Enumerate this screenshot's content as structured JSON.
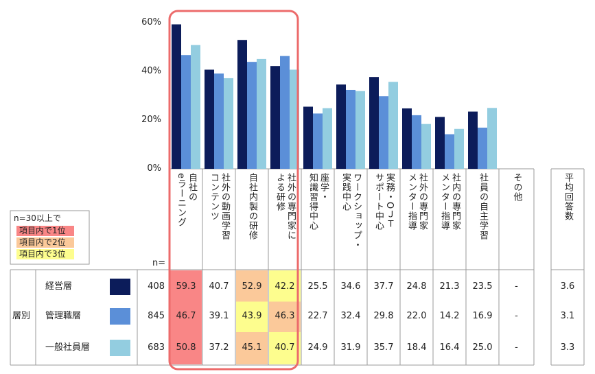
{
  "chart_data": {
    "type": "bar",
    "categories": [
      "自社の\neラーニング",
      "社外の動画学習\nコンテンツ",
      "自社内製の研修",
      "社外の専門家に\nよる研修",
      "座学・\n知識習得中心",
      "ワークショップ・\n実践中心",
      "実務・ОＪＴ\nサポート中心",
      "社外の専門家\nメンター指導",
      "社内の専門家\nメンター指導",
      "社員の自主学習",
      "その他"
    ],
    "average_label": "平均回答数",
    "ylim": [
      0,
      60
    ],
    "yticks": [
      {
        "value": 0,
        "label": "0%"
      },
      {
        "value": 20,
        "label": "20%"
      },
      {
        "value": 40,
        "label": "40%"
      },
      {
        "value": 60,
        "label": "60%"
      }
    ],
    "group_label": "層別",
    "n_label": "n=",
    "legend": {
      "title": "n=30以上で",
      "items": [
        {
          "name": "項目内で1位",
          "color": "#f98686"
        },
        {
          "name": "項目内で2位",
          "color": "#fbc99a"
        },
        {
          "name": "項目内で3位",
          "color": "#fdfd8e"
        }
      ]
    },
    "series": [
      {
        "name": "経営層",
        "color": "#0c1c5a",
        "n": 408,
        "values": [
          59.3,
          40.7,
          52.9,
          42.2,
          25.5,
          34.6,
          37.7,
          24.8,
          21.3,
          23.5,
          null
        ],
        "value_labels": [
          "59.3",
          "40.7",
          "52.9",
          "42.2",
          "25.5",
          "34.6",
          "37.7",
          "24.8",
          "21.3",
          "23.5",
          "-"
        ],
        "highlight": [
          0,
          null,
          1,
          2,
          null,
          null,
          null,
          null,
          null,
          null,
          null
        ],
        "average": 3.6
      },
      {
        "name": "管理職層",
        "color": "#5b8fd8",
        "n": 845,
        "values": [
          46.7,
          39.1,
          43.9,
          46.3,
          22.7,
          32.4,
          29.8,
          22.0,
          14.2,
          16.9,
          null
        ],
        "value_labels": [
          "46.7",
          "39.1",
          "43.9",
          "46.3",
          "22.7",
          "32.4",
          "29.8",
          "22.0",
          "14.2",
          "16.9",
          "-"
        ],
        "highlight": [
          0,
          null,
          2,
          1,
          null,
          null,
          null,
          null,
          null,
          null,
          null
        ],
        "average": 3.1
      },
      {
        "name": "一般社員層",
        "color": "#93cde0",
        "n": 683,
        "values": [
          50.8,
          37.2,
          45.1,
          40.7,
          24.9,
          31.9,
          35.7,
          18.4,
          16.4,
          25.0,
          null
        ],
        "value_labels": [
          "50.8",
          "37.2",
          "45.1",
          "40.7",
          "24.9",
          "31.9",
          "35.7",
          "18.4",
          "16.4",
          "25.0",
          "-"
        ],
        "highlight": [
          0,
          null,
          1,
          2,
          null,
          null,
          null,
          null,
          null,
          null,
          null
        ],
        "average": 3.3
      }
    ]
  }
}
